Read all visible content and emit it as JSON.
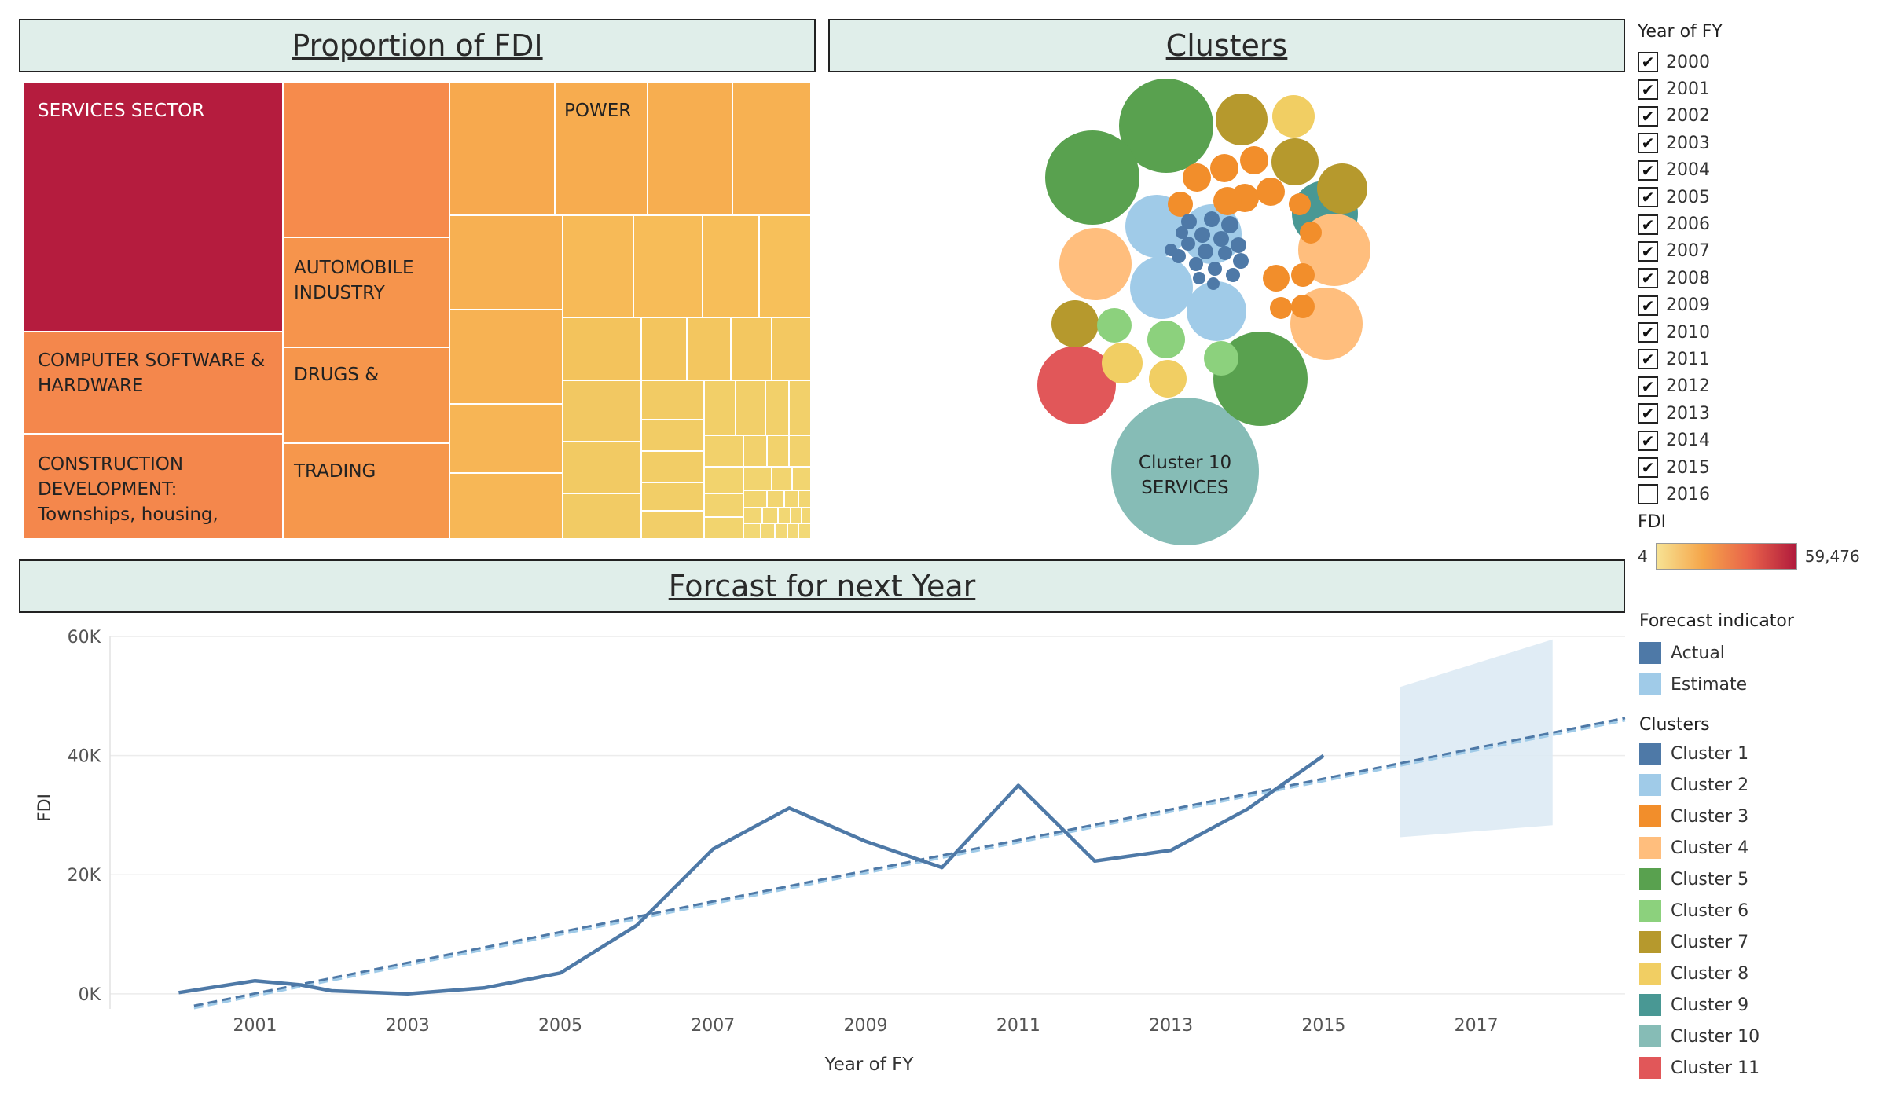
{
  "titles": {
    "proportion": "Proportion of FDI",
    "clusters": "Clusters",
    "forecast": "Forcast for next Year"
  },
  "treemap": {
    "labels": [
      "SERVICES SECTOR",
      "COMPUTER SOFTWARE & HARDWARE",
      "CONSTRUCTION DEVELOPMENT: Townships, housing,",
      "AUTOMOBILE INDUSTRY",
      "DRUGS &",
      "TRADING",
      "POWER"
    ]
  },
  "bubble": {
    "label_line1": "Cluster 10",
    "label_line2": "SERVICES"
  },
  "year_filter": {
    "title": "Year of FY",
    "years": [
      "2000",
      "2001",
      "2002",
      "2003",
      "2004",
      "2005",
      "2006",
      "2007",
      "2008",
      "2009",
      "2010",
      "2011",
      "2012",
      "2013",
      "2014",
      "2015"
    ],
    "partial": "2016"
  },
  "fdi_legend": {
    "title": "FDI",
    "min": "4",
    "max": "59,476",
    "colors": [
      "#f7e394",
      "#f5a54a",
      "#e8624a",
      "#b01a3c"
    ]
  },
  "forecast_legend": {
    "title": "Forecast indicator",
    "items": [
      {
        "label": "Actual",
        "color": "#4e79a7"
      },
      {
        "label": "Estimate",
        "color": "#a0cbe8"
      }
    ]
  },
  "clusters_legend": {
    "title": "Clusters",
    "items": [
      {
        "label": "Cluster 1",
        "color": "#4e79a7"
      },
      {
        "label": "Cluster 2",
        "color": "#a0cbe8"
      },
      {
        "label": "Cluster 3",
        "color": "#f28e2b"
      },
      {
        "label": "Cluster 4",
        "color": "#ffbe7d"
      },
      {
        "label": "Cluster 5",
        "color": "#59a14f"
      },
      {
        "label": "Cluster 6",
        "color": "#8cd17d"
      },
      {
        "label": "Cluster 7",
        "color": "#b6992d"
      },
      {
        "label": "Cluster 8",
        "color": "#f1ce63"
      },
      {
        "label": "Cluster 9",
        "color": "#499894"
      },
      {
        "label": "Cluster 10",
        "color": "#86bcb6"
      },
      {
        "label": "Cluster 11",
        "color": "#e15759"
      }
    ]
  },
  "chart_data": {
    "type": "line",
    "xlabel": "Year of FY",
    "ylabel": "FDI",
    "xlim": [
      1999.1,
      2018.95
    ],
    "ylim": [
      -2000,
      60000
    ],
    "x_ticks": [
      2001,
      2003,
      2005,
      2007,
      2009,
      2011,
      2013,
      2015,
      2017
    ],
    "y_ticks": [
      {
        "value": 0,
        "label": "0K"
      },
      {
        "value": 20000,
        "label": "20K"
      },
      {
        "value": 40000,
        "label": "40K"
      },
      {
        "value": 60000,
        "label": "60K"
      }
    ],
    "actual": {
      "x": [
        2000,
        2001,
        2001.6,
        2002,
        2003,
        2004,
        2005,
        2006,
        2007,
        2008,
        2009,
        2010,
        2011,
        2012,
        2013,
        2014,
        2015
      ],
      "y": [
        200,
        2200,
        1500,
        500,
        0,
        1000,
        3500,
        11500,
        24300,
        31200,
        25600,
        21200,
        35000,
        22300,
        24100,
        31000,
        40000
      ]
    },
    "trend_actual": {
      "x": [
        2000.2,
        2018.95
      ],
      "y": [
        -2000,
        46300
      ]
    },
    "trend_estimate": {
      "x": [
        2000.2,
        2018.95
      ],
      "y": [
        -2000,
        46300
      ]
    },
    "estimate_band": {
      "x": [
        2016,
        2018
      ],
      "upper": [
        51500,
        59500
      ],
      "lower": [
        26300,
        28300
      ]
    },
    "grid": true
  }
}
